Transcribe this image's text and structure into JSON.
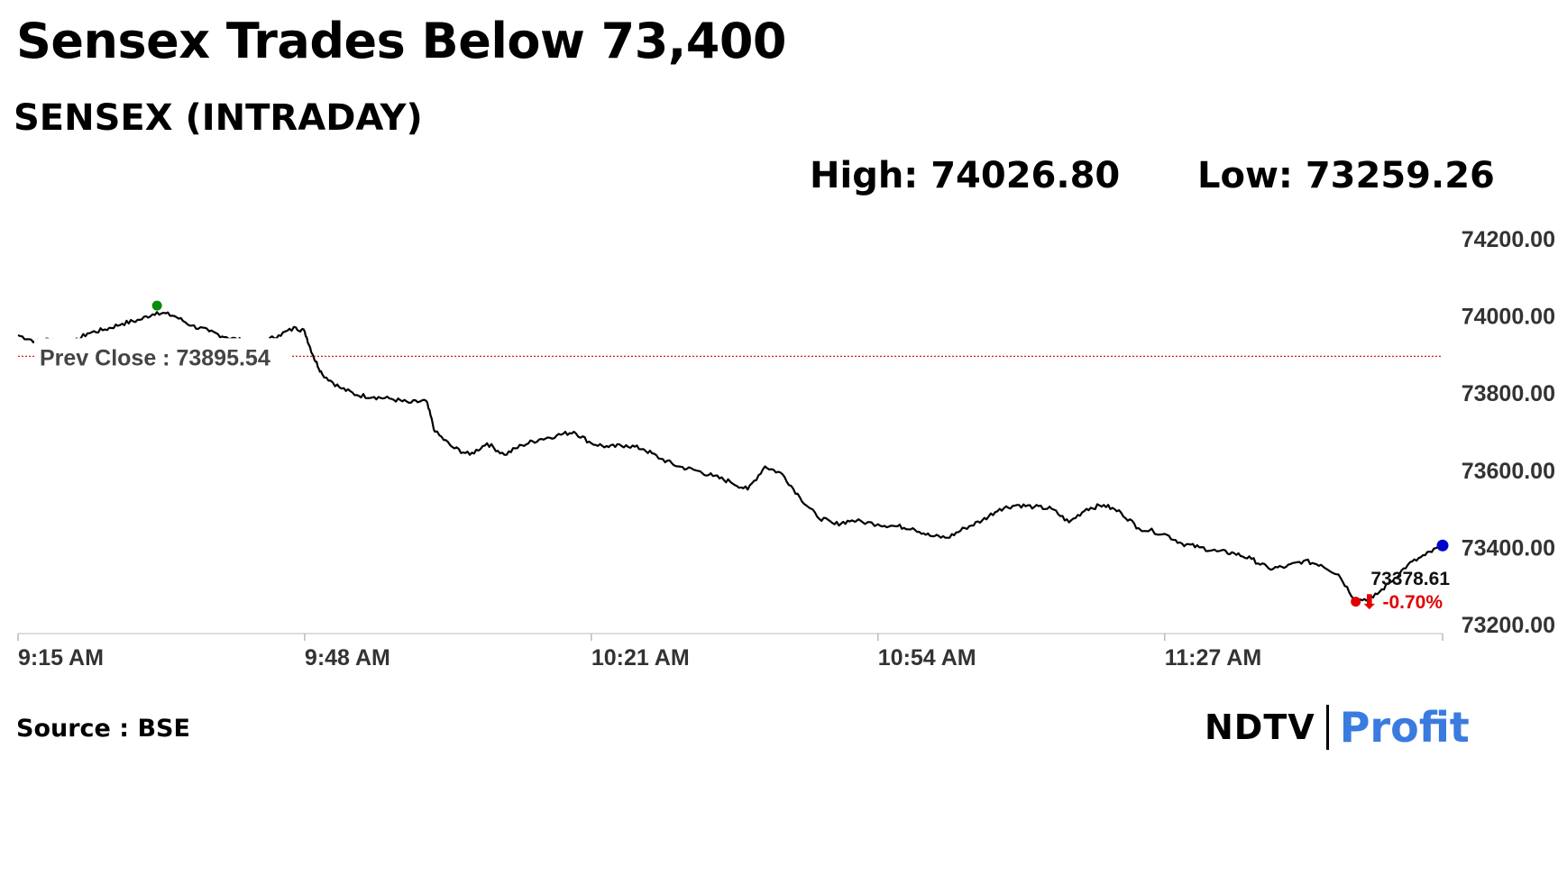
{
  "headline": "Sensex Trades Below 73,400",
  "chart_data": {
    "type": "line",
    "title": "SENSEX (INTRADAY)",
    "high_text": "High: 74026.80",
    "low_text": "Low: 73259.26",
    "high": 74026.8,
    "low": 73259.26,
    "prev_close": 73895.54,
    "prev_close_label": "Prev Close : 73895.54",
    "last_value": 73378.61,
    "last_value_label": "73378.61",
    "change_label": "⬇ -0.70%",
    "ylim": [
      73200,
      74200
    ],
    "y_ticks": [
      "74200.00",
      "74000.00",
      "73800.00",
      "73600.00",
      "73400.00",
      "73200.00"
    ],
    "x_ticks": [
      "9:15 AM",
      "9:48 AM",
      "10:21 AM",
      "10:54 AM",
      "11:27 AM"
    ],
    "xlabel": "",
    "ylabel": "",
    "grid": false,
    "series": [
      {
        "x": [
          "9:15 AM",
          "9:17 AM",
          "9:19 AM",
          "9:21 AM",
          "9:23 AM",
          "9:25 AM",
          "9:27 AM",
          "9:29 AM",
          "9:31 AM",
          "9:33 AM",
          "9:35 AM",
          "9:37 AM",
          "9:39 AM",
          "9:41 AM",
          "9:43 AM",
          "9:45 AM",
          "9:47 AM",
          "9:48 AM",
          "9:49 AM",
          "9:50 AM",
          "9:52 AM",
          "9:54 AM",
          "9:56 AM",
          "9:58 AM",
          "10:00 AM",
          "10:02 AM",
          "10:03 AM",
          "10:05 AM",
          "10:07 AM",
          "10:09 AM",
          "10:11 AM",
          "10:13 AM",
          "10:15 AM",
          "10:17 AM",
          "10:19 AM",
          "10:21 AM",
          "10:23 AM",
          "10:25 AM",
          "10:27 AM",
          "10:29 AM",
          "10:31 AM",
          "10:33 AM",
          "10:35 AM",
          "10:37 AM",
          "10:39 AM",
          "10:41 AM",
          "10:43 AM",
          "10:45 AM",
          "10:47 AM",
          "10:49 AM",
          "10:51 AM",
          "10:54 AM",
          "10:56 AM",
          "10:58 AM",
          "11:00 AM",
          "11:02 AM",
          "11:04 AM",
          "11:06 AM",
          "11:08 AM",
          "11:10 AM",
          "11:12 AM",
          "11:14 AM",
          "11:16 AM",
          "11:18 AM",
          "11:20 AM",
          "11:22 AM",
          "11:24 AM",
          "11:27 AM",
          "11:29 AM",
          "11:31 AM",
          "11:33 AM",
          "11:35 AM",
          "11:37 AM",
          "11:39 AM",
          "11:41 AM",
          "11:43 AM",
          "11:45 AM",
          "11:47 AM",
          "11:49 AM",
          "11:51 AM",
          "11:53 AM",
          "11:55 AM",
          "11:57 AM",
          "11:59 AM"
        ],
        "values": [
          73950,
          73935,
          73940,
          73925,
          73955,
          73965,
          73980,
          73990,
          74010,
          74000,
          73975,
          73960,
          73945,
          73935,
          73930,
          73950,
          73970,
          73960,
          73895,
          73850,
          73815,
          73795,
          73790,
          73785,
          73775,
          73780,
          73700,
          73660,
          73640,
          73670,
          73640,
          73665,
          73680,
          73690,
          73700,
          73670,
          73660,
          73665,
          73655,
          73630,
          73610,
          73600,
          73585,
          73570,
          73550,
          73610,
          73590,
          73530,
          73480,
          73460,
          73470,
          73460,
          73455,
          73450,
          73430,
          73425,
          73450,
          73470,
          73500,
          73510,
          73505,
          73500,
          73465,
          73500,
          73510,
          73490,
          73450,
          73435,
          73410,
          73400,
          73390,
          73385,
          73370,
          73345,
          73350,
          73365,
          73355,
          73330,
          73262,
          73270,
          73310,
          73355,
          73380,
          73405
        ]
      }
    ]
  },
  "source_text": "Source : BSE",
  "logo": {
    "left": "NDTV",
    "right": "Profit"
  },
  "colors": {
    "line": "#000000",
    "prev_close_line": "#d00000",
    "high_marker": "#0a8a0a",
    "low_marker": "#e00000",
    "last_marker": "#0000cc",
    "change_text": "#e00000",
    "profit_text": "#3a7be0"
  }
}
